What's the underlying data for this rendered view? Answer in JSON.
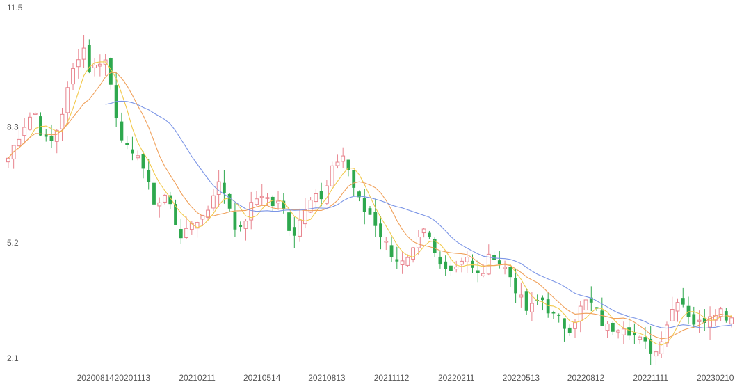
{
  "chart_data": {
    "type": "candlestick",
    "title": "",
    "xlabel": "",
    "ylabel": "",
    "ylim": [
      2.1,
      11.5
    ],
    "y_ticks": [
      2.1,
      5.2,
      8.3,
      11.5
    ],
    "x_ticks": [
      "20200814",
      "20201113",
      "20210211",
      "20210514",
      "20210813",
      "20211112",
      "20220211",
      "20220513",
      "20220812",
      "20221111",
      "20230210"
    ],
    "grid": false,
    "legend": "none",
    "colors": {
      "up": "#e8838d",
      "down": "#2ea84e",
      "ma_short": "#f2c94c",
      "ma_mid": "#f0a05a",
      "ma_long": "#7b95e6"
    },
    "ohlc_waypoints": [
      {
        "x": 0,
        "close": 7.6
      },
      {
        "x": 1,
        "close": 8.0
      },
      {
        "x": 2,
        "close": 8.4
      },
      {
        "x": 3,
        "close": 8.7
      },
      {
        "x": 4,
        "close": 8.8
      },
      {
        "x": 5,
        "close": 8.2
      },
      {
        "x": 6,
        "close": 7.9
      },
      {
        "x": 7,
        "close": 8.3
      },
      {
        "x": 8,
        "close": 8.9
      },
      {
        "x": 9,
        "close": 9.6
      },
      {
        "x": 10,
        "close": 10.3
      },
      {
        "x": 11,
        "close": 10.6
      },
      {
        "x": 12,
        "close": 9.9
      },
      {
        "x": 13,
        "close": 10.1
      },
      {
        "x": 14,
        "close": 10.4
      },
      {
        "x": 15,
        "close": 9.6
      },
      {
        "x": 16,
        "close": 8.6
      },
      {
        "x": 17,
        "close": 8.0
      },
      {
        "x": 18,
        "close": 7.5
      },
      {
        "x": 19,
        "close": 7.8
      },
      {
        "x": 20,
        "close": 7.2
      },
      {
        "x": 21,
        "close": 6.5
      },
      {
        "x": 22,
        "close": 6.4
      },
      {
        "x": 23,
        "close": 6.6
      },
      {
        "x": 24,
        "close": 6.2
      },
      {
        "x": 25,
        "close": 5.6
      },
      {
        "x": 26,
        "close": 5.5
      },
      {
        "x": 27,
        "close": 5.9
      },
      {
        "x": 28,
        "close": 6.0
      },
      {
        "x": 29,
        "close": 6.1
      },
      {
        "x": 30,
        "close": 6.7
      },
      {
        "x": 31,
        "close": 6.9
      },
      {
        "x": 32,
        "close": 6.6
      },
      {
        "x": 33,
        "close": 5.9
      },
      {
        "x": 34,
        "close": 5.6
      },
      {
        "x": 35,
        "close": 6.1
      },
      {
        "x": 36,
        "close": 6.4
      },
      {
        "x": 37,
        "close": 6.7
      },
      {
        "x": 38,
        "close": 6.5
      },
      {
        "x": 39,
        "close": 6.3
      },
      {
        "x": 40,
        "close": 6.4
      },
      {
        "x": 41,
        "close": 5.8
      },
      {
        "x": 42,
        "close": 5.6
      },
      {
        "x": 43,
        "close": 6.1
      },
      {
        "x": 44,
        "close": 6.6
      },
      {
        "x": 45,
        "close": 6.7
      },
      {
        "x": 46,
        "close": 6.4
      },
      {
        "x": 47,
        "close": 7.0
      },
      {
        "x": 48,
        "close": 7.5
      },
      {
        "x": 49,
        "close": 7.7
      },
      {
        "x": 50,
        "close": 7.2
      },
      {
        "x": 51,
        "close": 6.6
      },
      {
        "x": 52,
        "close": 6.2
      },
      {
        "x": 53,
        "close": 6.1
      },
      {
        "x": 54,
        "close": 5.8
      },
      {
        "x": 55,
        "close": 5.4
      },
      {
        "x": 56,
        "close": 5.1
      },
      {
        "x": 57,
        "close": 4.9
      },
      {
        "x": 58,
        "close": 4.7
      },
      {
        "x": 59,
        "close": 4.9
      },
      {
        "x": 60,
        "close": 5.3
      },
      {
        "x": 61,
        "close": 5.6
      },
      {
        "x": 62,
        "close": 5.3
      },
      {
        "x": 63,
        "close": 4.7
      },
      {
        "x": 64,
        "close": 4.8
      },
      {
        "x": 65,
        "close": 4.6
      },
      {
        "x": 66,
        "close": 4.8
      },
      {
        "x": 67,
        "close": 5.1
      },
      {
        "x": 68,
        "close": 4.6
      },
      {
        "x": 69,
        "close": 4.4
      },
      {
        "x": 70,
        "close": 4.7
      },
      {
        "x": 71,
        "close": 5.1
      },
      {
        "x": 72,
        "close": 4.8
      },
      {
        "x": 73,
        "close": 4.6
      },
      {
        "x": 74,
        "close": 4.3
      },
      {
        "x": 75,
        "close": 3.8
      },
      {
        "x": 76,
        "close": 3.5
      },
      {
        "x": 77,
        "close": 3.6
      },
      {
        "x": 78,
        "close": 3.9
      },
      {
        "x": 79,
        "close": 3.6
      },
      {
        "x": 80,
        "close": 3.3
      },
      {
        "x": 81,
        "close": 3.2
      },
      {
        "x": 82,
        "close": 3.0
      },
      {
        "x": 83,
        "close": 3.3
      },
      {
        "x": 84,
        "close": 3.6
      },
      {
        "x": 85,
        "close": 3.8
      },
      {
        "x": 86,
        "close": 3.5
      },
      {
        "x": 87,
        "close": 3.2
      },
      {
        "x": 88,
        "close": 3.0
      },
      {
        "x": 89,
        "close": 3.1
      },
      {
        "x": 90,
        "close": 3.2
      },
      {
        "x": 91,
        "close": 3.0
      },
      {
        "x": 92,
        "close": 2.8
      },
      {
        "x": 93,
        "close": 2.6
      },
      {
        "x": 94,
        "close": 2.5
      },
      {
        "x": 95,
        "close": 2.4
      },
      {
        "x": 96,
        "close": 3.0
      },
      {
        "x": 97,
        "close": 3.4
      },
      {
        "x": 98,
        "close": 3.9
      },
      {
        "x": 99,
        "close": 3.7
      },
      {
        "x": 100,
        "close": 3.3
      },
      {
        "x": 101,
        "close": 3.1
      },
      {
        "x": 102,
        "close": 3.3
      },
      {
        "x": 103,
        "close": 3.5
      },
      {
        "x": 104,
        "close": 3.6
      },
      {
        "x": 105,
        "close": 3.4
      },
      {
        "x": 106,
        "close": 3.35
      }
    ],
    "x_tick_positions": [
      11,
      23,
      35,
      47,
      59,
      71,
      83,
      95,
      107,
      119,
      131
    ],
    "total_bars": 135
  }
}
